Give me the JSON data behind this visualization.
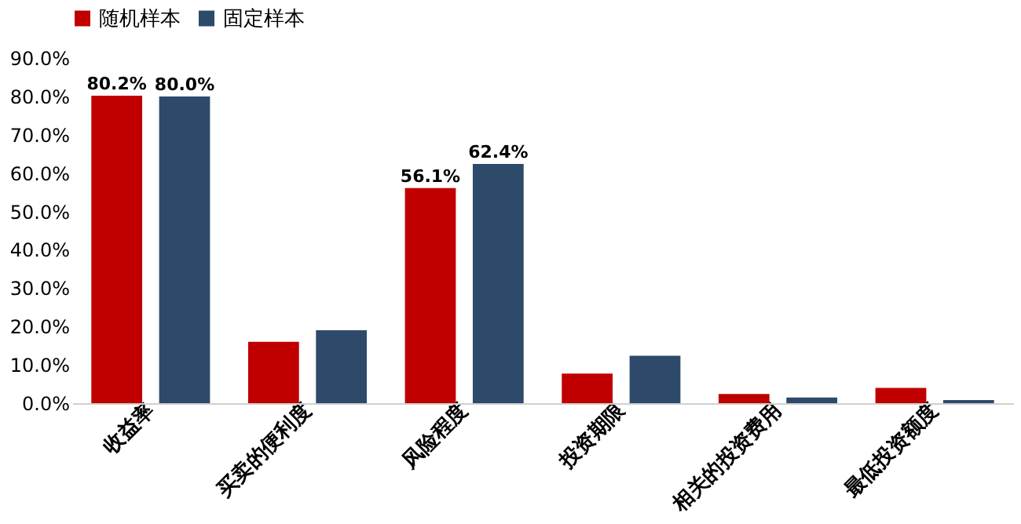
{
  "chart_data": {
    "type": "bar",
    "categories": [
      "收益率",
      "买卖的便利度",
      "风险程度",
      "投资期限",
      "相关的投资费用",
      "最低投资额度"
    ],
    "series": [
      {
        "name": "随机样本",
        "color": "#c00000",
        "values": [
          80.2,
          16,
          56.1,
          7.7,
          2.4,
          4
        ],
        "value_labels": [
          "80.2%",
          null,
          "56.1%",
          null,
          null,
          null
        ]
      },
      {
        "name": "固定样本",
        "color": "#2e4a6b",
        "values": [
          80.0,
          19,
          62.4,
          12.4,
          1.5,
          0.8
        ],
        "value_labels": [
          "80.0%",
          null,
          "62.4%",
          null,
          null,
          null
        ]
      }
    ],
    "ylim": [
      0,
      90
    ],
    "yticks": [
      {
        "value": 0,
        "label": "0.0%"
      },
      {
        "value": 10,
        "label": "10.0%"
      },
      {
        "value": 20,
        "label": "20.0%"
      },
      {
        "value": 30,
        "label": "30.0%"
      },
      {
        "value": 40,
        "label": "40.0%"
      },
      {
        "value": 50,
        "label": "50.0%"
      },
      {
        "value": 60,
        "label": "60.0%"
      },
      {
        "value": 70,
        "label": "70.0%"
      },
      {
        "value": 80,
        "label": "80.0%"
      },
      {
        "value": 90,
        "label": "90.0%"
      }
    ],
    "grid": false,
    "legend": "top"
  }
}
